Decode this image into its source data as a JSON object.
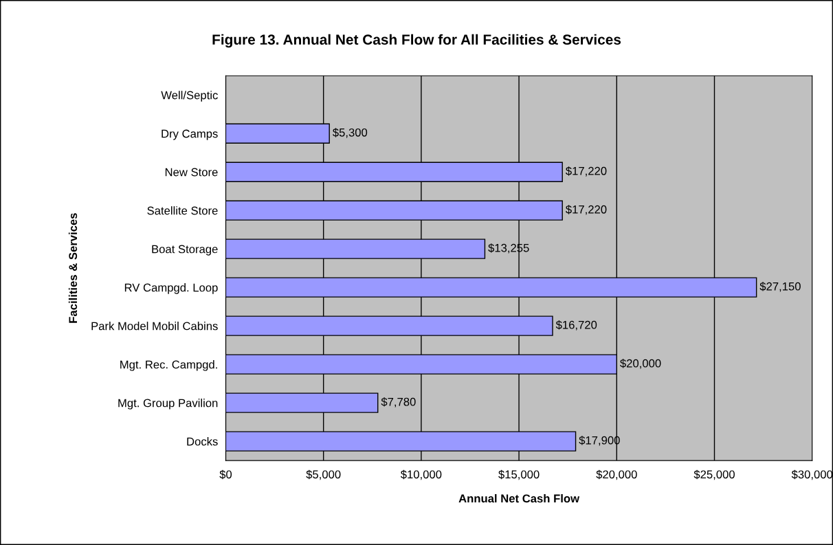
{
  "chart_data": {
    "type": "bar",
    "orientation": "horizontal",
    "title": "Figure 13. Annual Net Cash Flow for All Facilities & Services",
    "xlabel": "Annual Net Cash Flow",
    "ylabel": "Facilities & Services",
    "categories": [
      "Well/Septic",
      "Dry Camps",
      "New Store",
      "Satellite Store",
      "Boat Storage",
      "RV Campgd. Loop",
      "Park Model Mobil Cabins",
      "Mgt. Rec. Campgd.",
      "Mgt. Group Pavilion",
      "Docks"
    ],
    "series": [
      {
        "color": "#9999ff",
        "values": [
          null,
          5300,
          17220,
          17220,
          13255,
          27150,
          16720,
          20000,
          7780,
          17900
        ],
        "value_labels": [
          null,
          "$5,300",
          "$17,220",
          "$17,220",
          "$13,255",
          "$27,150",
          "$16,720",
          "$20,000",
          "$7,780",
          "$17,900"
        ]
      }
    ],
    "xlim": [
      0,
      30000
    ],
    "xticks": [
      {
        "value": 0,
        "label": "$0"
      },
      {
        "value": 5000,
        "label": "$5,000"
      },
      {
        "value": 10000,
        "label": "$10,000"
      },
      {
        "value": 15000,
        "label": "$15,000"
      },
      {
        "value": 20000,
        "label": "$20,000"
      },
      {
        "value": 25000,
        "label": "$25,000"
      },
      {
        "value": 30000,
        "label": "$30,000"
      }
    ],
    "grid": "x",
    "legend": false
  }
}
